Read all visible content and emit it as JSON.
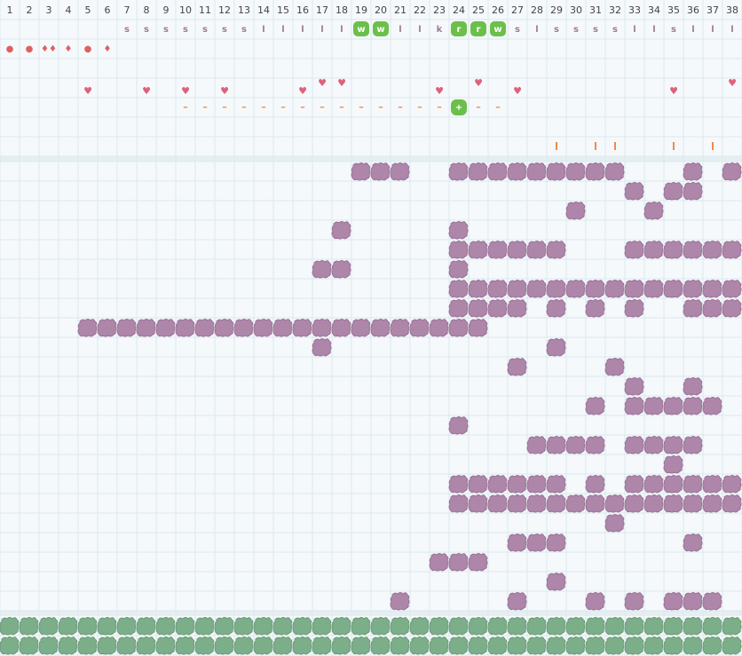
{
  "columns": [
    1,
    2,
    3,
    4,
    5,
    6,
    7,
    8,
    9,
    10,
    11,
    12,
    13,
    14,
    15,
    16,
    17,
    18,
    19,
    20,
    21,
    22,
    23,
    24,
    25,
    26,
    27,
    28,
    29,
    30,
    31,
    32,
    33,
    34,
    35,
    36,
    37,
    38
  ],
  "tags": [
    null,
    null,
    null,
    null,
    null,
    null,
    "s",
    "s",
    "s",
    "s",
    "s",
    "s",
    "s",
    "l",
    "l",
    "l",
    "l",
    "l",
    "w",
    "w",
    "l",
    "l",
    "k",
    "r",
    "r",
    "w",
    "s",
    "l",
    "s",
    "s",
    "s",
    "s",
    "l",
    "l",
    "s",
    "l",
    "l",
    "l"
  ],
  "tag_highlight_columns": [
    19,
    20,
    24,
    25,
    26
  ],
  "symbols": [
    "●",
    "●",
    "♦♦",
    "♦",
    "●",
    "♦",
    null,
    null,
    null,
    null,
    null,
    null,
    null,
    null,
    null,
    null,
    null,
    null,
    null,
    null,
    null,
    null,
    null,
    null,
    null,
    null,
    null,
    null,
    null,
    null,
    null,
    null,
    null,
    null,
    null,
    null,
    null,
    null
  ],
  "hearts": {
    "symbol": "♥",
    "high_columns": [
      17,
      18,
      25,
      38
    ],
    "low_columns": [
      5,
      8,
      10,
      12,
      16,
      23,
      27,
      35
    ]
  },
  "dashes": {
    "symbol": "–",
    "columns": [
      10,
      11,
      12,
      13,
      14,
      15,
      16,
      17,
      18,
      19,
      20,
      21,
      22,
      23,
      25,
      26
    ]
  },
  "plus": {
    "symbol": "+",
    "column": 24
  },
  "tick_columns": [
    29,
    31,
    32,
    35,
    37
  ],
  "grid_rows": [
    [
      19,
      20,
      21,
      24,
      25,
      26,
      27,
      28,
      29,
      30,
      31,
      32,
      36,
      38
    ],
    [
      33,
      35,
      36
    ],
    [
      30,
      34
    ],
    [
      18,
      24
    ],
    [
      24,
      25,
      26,
      27,
      28,
      29,
      33,
      34,
      35,
      36,
      37,
      38
    ],
    [
      17,
      18,
      24
    ],
    [
      24,
      25,
      26,
      27,
      28,
      29,
      30,
      31,
      32,
      33,
      34,
      35,
      36,
      37,
      38
    ],
    [
      24,
      25,
      26,
      27,
      29,
      31,
      33,
      36,
      37,
      38
    ],
    [
      5,
      6,
      7,
      8,
      9,
      10,
      11,
      12,
      13,
      14,
      15,
      16,
      17,
      18,
      19,
      20,
      21,
      22,
      23,
      24,
      25
    ],
    [
      17,
      29
    ],
    [
      27,
      32
    ],
    [
      33,
      36
    ],
    [
      31,
      33,
      34,
      35,
      36,
      37
    ],
    [
      24
    ],
    [
      28,
      29,
      30,
      31,
      33,
      34,
      35,
      36
    ],
    [
      35
    ],
    [
      24,
      25,
      26,
      27,
      28,
      29,
      31,
      33,
      34,
      35,
      36,
      37,
      38
    ],
    [
      24,
      25,
      26,
      27,
      28,
      29,
      30,
      31,
      32,
      33,
      34,
      35,
      36,
      37,
      38
    ],
    [
      32
    ],
    [
      27,
      28,
      29,
      36
    ],
    [
      23,
      24,
      25
    ],
    [
      29
    ],
    [
      21,
      27,
      31,
      33,
      35,
      36,
      37
    ]
  ],
  "footer_rows": [
    [
      1,
      2,
      3,
      4,
      5,
      6,
      7,
      8,
      9,
      10,
      11,
      12,
      13,
      14,
      15,
      16,
      17,
      18,
      19,
      20,
      21,
      22,
      23,
      24,
      25,
      26,
      27,
      28,
      29,
      30,
      31,
      32,
      33,
      34,
      35,
      36,
      37,
      38
    ],
    [
      1,
      2,
      3,
      4,
      5,
      6,
      7,
      8,
      9,
      10,
      11,
      12,
      13,
      14,
      15,
      16,
      17,
      18,
      19,
      20,
      21,
      22,
      23,
      24,
      25,
      26,
      27,
      28,
      29,
      30,
      31,
      32,
      33,
      34,
      35,
      36,
      37,
      38
    ]
  ]
}
